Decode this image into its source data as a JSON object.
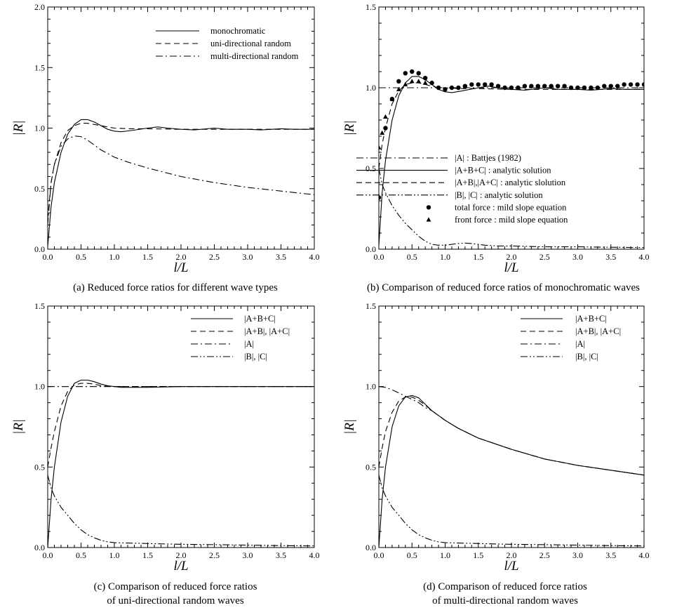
{
  "figure": {
    "captions": {
      "a": [
        "(a) Reduced force ratios for different wave types"
      ],
      "b": [
        "(b) Comparison of reduced force ratios of monochromatic waves"
      ],
      "c": [
        "(c) Comparison of reduced force ratios",
        "of uni-directional random waves"
      ],
      "d": [
        "(d) Comparison of reduced force ratios",
        "of multi-directional random waves"
      ]
    }
  },
  "chart_data": [
    {
      "id": "a",
      "type": "line",
      "xlabel": "l/L",
      "ylabel": "|R|",
      "xlim": [
        0,
        4
      ],
      "ylim": [
        0,
        2
      ],
      "xticks": [
        "0.0",
        "0.5",
        "1.0",
        "1.5",
        "2.0",
        "2.5",
        "3.0",
        "3.5",
        "4.0"
      ],
      "yticks": [
        "0.0",
        "0.5",
        "1.0",
        "1.5",
        "2.0"
      ],
      "legend_position": "top-right",
      "series": [
        {
          "name": "monochromatic",
          "style": "solid",
          "x": [
            0,
            0.05,
            0.1,
            0.2,
            0.3,
            0.4,
            0.5,
            0.6,
            0.7,
            0.8,
            0.9,
            1.0,
            1.1,
            1.25,
            1.5,
            1.65,
            1.8,
            2.0,
            2.2,
            2.5,
            2.7,
            3.0,
            3.2,
            3.5,
            3.7,
            4.0
          ],
          "y": [
            0.02,
            0.35,
            0.55,
            0.8,
            0.95,
            1.03,
            1.07,
            1.07,
            1.05,
            1.02,
            0.99,
            0.975,
            0.97,
            0.98,
            1.0,
            1.01,
            1.0,
            0.99,
            0.985,
            1.0,
            0.99,
            0.99,
            0.985,
            0.995,
            0.99,
            0.99
          ]
        },
        {
          "name": "uni-directional random",
          "style": "dashed",
          "x": [
            0,
            0.05,
            0.1,
            0.2,
            0.3,
            0.4,
            0.5,
            0.6,
            0.7,
            0.8,
            0.9,
            1.0,
            1.2,
            1.5,
            2.0,
            2.5,
            3.0,
            3.5,
            4.0
          ],
          "y": [
            0.25,
            0.55,
            0.7,
            0.88,
            0.98,
            1.02,
            1.04,
            1.04,
            1.03,
            1.02,
            1.01,
            1.0,
            0.995,
            0.995,
            0.99,
            0.99,
            0.99,
            0.99,
            0.99
          ]
        },
        {
          "name": "multi-directional random",
          "style": "dashdot",
          "x": [
            0,
            0.05,
            0.1,
            0.2,
            0.3,
            0.4,
            0.5,
            0.6,
            0.7,
            0.8,
            0.9,
            1.0,
            1.2,
            1.5,
            2.0,
            2.5,
            3.0,
            3.5,
            4.0
          ],
          "y": [
            0.2,
            0.55,
            0.7,
            0.85,
            0.91,
            0.935,
            0.93,
            0.9,
            0.86,
            0.82,
            0.79,
            0.76,
            0.72,
            0.67,
            0.6,
            0.55,
            0.51,
            0.48,
            0.45
          ]
        }
      ]
    },
    {
      "id": "b",
      "type": "line",
      "xlabel": "l/L",
      "ylabel": "|R|",
      "xlim": [
        0,
        4
      ],
      "ylim": [
        0,
        1.5
      ],
      "xticks": [
        "0.0",
        "0.5",
        "1.0",
        "1.5",
        "2.0",
        "2.5",
        "3.0",
        "3.5",
        "4.0"
      ],
      "yticks": [
        "0.0",
        "0.5",
        "1.0",
        "1.5"
      ],
      "legend_position": "bottom-right",
      "series": [
        {
          "name": "|A| : Battjes (1982)",
          "style": "dashdot",
          "x": [
            0,
            4
          ],
          "y": [
            1.0,
            1.0
          ]
        },
        {
          "name": "|A+B+C| : analytic solution",
          "style": "solid",
          "x": [
            0,
            0.05,
            0.1,
            0.2,
            0.3,
            0.4,
            0.5,
            0.6,
            0.7,
            0.8,
            0.9,
            1.0,
            1.1,
            1.25,
            1.5,
            1.65,
            1.8,
            2.0,
            2.2,
            2.5,
            2.7,
            3.0,
            3.2,
            3.5,
            3.7,
            4.0
          ],
          "y": [
            0.02,
            0.35,
            0.55,
            0.8,
            0.95,
            1.03,
            1.07,
            1.07,
            1.05,
            1.02,
            0.99,
            0.975,
            0.97,
            0.98,
            1.0,
            1.01,
            1.0,
            0.99,
            0.985,
            1.0,
            0.99,
            0.99,
            0.985,
            0.995,
            0.99,
            0.99
          ]
        },
        {
          "name": "|A+B|,|A+C| : analytic slolution",
          "style": "dashed",
          "x": [
            0,
            0.05,
            0.1,
            0.2,
            0.3,
            0.4,
            0.5,
            0.6,
            0.7,
            0.8,
            0.9,
            1.0,
            1.2,
            1.5,
            2.0,
            2.5,
            3.0,
            3.5,
            4.0
          ],
          "y": [
            0.5,
            0.65,
            0.75,
            0.9,
            0.98,
            1.02,
            1.03,
            1.03,
            1.02,
            1.01,
            1.0,
            1.0,
            0.995,
            0.995,
            0.99,
            0.99,
            0.99,
            0.99,
            0.99
          ]
        },
        {
          "name": "|B|, |C| : analytic solution",
          "style": "dashdotdot",
          "x": [
            0,
            0.05,
            0.1,
            0.2,
            0.3,
            0.4,
            0.5,
            0.6,
            0.7,
            0.8,
            0.9,
            1.0,
            1.1,
            1.2,
            1.3,
            1.4,
            1.5,
            1.6,
            1.8,
            2.0,
            2.5,
            3.0,
            3.5,
            4.0
          ],
          "y": [
            0.5,
            0.4,
            0.35,
            0.27,
            0.21,
            0.16,
            0.12,
            0.08,
            0.05,
            0.03,
            0.025,
            0.025,
            0.03,
            0.035,
            0.038,
            0.035,
            0.03,
            0.025,
            0.02,
            0.02,
            0.015,
            0.015,
            0.012,
            0.01
          ]
        },
        {
          "name": "total force : mild slope equation",
          "style": "circle",
          "x": [
            0.0,
            0.1,
            0.2,
            0.3,
            0.4,
            0.5,
            0.6,
            0.7,
            0.8,
            0.9,
            1.0,
            1.1,
            1.2,
            1.3,
            1.4,
            1.5,
            1.6,
            1.7,
            1.8,
            1.9,
            2.0,
            2.1,
            2.2,
            2.3,
            2.4,
            2.5,
            2.6,
            2.7,
            2.8,
            2.9,
            3.0,
            3.1,
            3.2,
            3.3,
            3.4,
            3.5,
            3.6,
            3.7,
            3.8,
            3.9,
            4.0
          ],
          "y": [
            0.32,
            0.75,
            0.93,
            1.04,
            1.09,
            1.1,
            1.09,
            1.06,
            1.03,
            1.0,
            0.99,
            1.0,
            1.0,
            1.01,
            1.02,
            1.02,
            1.02,
            1.02,
            1.01,
            1.0,
            1.0,
            1.0,
            1.01,
            1.01,
            1.01,
            1.01,
            1.01,
            1.01,
            1.01,
            1.0,
            1.0,
            1.0,
            1.0,
            1.0,
            1.01,
            1.01,
            1.01,
            1.02,
            1.02,
            1.02,
            1.02
          ]
        },
        {
          "name": "front force : mild slope equation",
          "style": "triangle",
          "x": [
            0.0,
            0.05,
            0.1,
            0.2,
            0.3,
            0.4,
            0.5,
            0.6,
            0.7
          ],
          "y": [
            0.63,
            0.72,
            0.82,
            0.93,
            0.99,
            1.02,
            1.04,
            1.04,
            1.03
          ]
        }
      ]
    },
    {
      "id": "c",
      "type": "line",
      "xlabel": "l/L",
      "ylabel": "|R|",
      "xlim": [
        0,
        4
      ],
      "ylim": [
        0,
        1.5
      ],
      "xticks": [
        "0.0",
        "0.5",
        "1.0",
        "1.5",
        "2.0",
        "2.5",
        "3.0",
        "3.5",
        "4.0"
      ],
      "yticks": [
        "0.0",
        "0.5",
        "1.0",
        "1.5"
      ],
      "legend_position": "top-right",
      "series": [
        {
          "name": "|A+B+C|",
          "style": "solid",
          "x": [
            0,
            0.05,
            0.1,
            0.2,
            0.3,
            0.4,
            0.5,
            0.6,
            0.7,
            0.8,
            0.9,
            1.0,
            1.1,
            1.2,
            1.5,
            2.0,
            2.5,
            3.0,
            3.5,
            4.0
          ],
          "y": [
            0.0,
            0.3,
            0.5,
            0.78,
            0.94,
            1.02,
            1.04,
            1.04,
            1.03,
            1.015,
            1.005,
            1.0,
            0.995,
            0.995,
            0.995,
            1.0,
            1.0,
            1.0,
            1.0,
            1.0
          ]
        },
        {
          "name": "|A+B|, |A+C|",
          "style": "dashed",
          "x": [
            0,
            0.05,
            0.1,
            0.2,
            0.3,
            0.4,
            0.5,
            0.6,
            0.7,
            0.8,
            1.0,
            1.5,
            2.0,
            2.5,
            3.0,
            3.5,
            4.0
          ],
          "y": [
            0.5,
            0.62,
            0.72,
            0.88,
            0.97,
            1.01,
            1.02,
            1.02,
            1.015,
            1.005,
            1.0,
            1.0,
            1.0,
            1.0,
            1.0,
            1.0,
            1.0
          ]
        },
        {
          "name": "|A|",
          "style": "dashdot",
          "x": [
            0,
            4
          ],
          "y": [
            1.0,
            1.0
          ]
        },
        {
          "name": "|B|, |C|",
          "style": "dashdotdot",
          "x": [
            0,
            0.05,
            0.1,
            0.2,
            0.3,
            0.4,
            0.5,
            0.6,
            0.7,
            0.8,
            0.9,
            1.0,
            1.2,
            1.5,
            2.0,
            2.5,
            3.0,
            3.5,
            4.0
          ],
          "y": [
            0.45,
            0.37,
            0.32,
            0.25,
            0.2,
            0.15,
            0.11,
            0.08,
            0.06,
            0.045,
            0.035,
            0.03,
            0.028,
            0.025,
            0.02,
            0.018,
            0.015,
            0.012,
            0.01
          ]
        }
      ]
    },
    {
      "id": "d",
      "type": "line",
      "xlabel": "l/L",
      "ylabel": "|R|",
      "xlim": [
        0,
        4
      ],
      "ylim": [
        0,
        1.5
      ],
      "xticks": [
        "0.0",
        "0.5",
        "1.0",
        "1.5",
        "2.0",
        "2.5",
        "3.0",
        "3.5",
        "4.0"
      ],
      "yticks": [
        "0.0",
        "0.5",
        "1.0",
        "1.5"
      ],
      "legend_position": "top-right",
      "series": [
        {
          "name": "|A+B+C|",
          "style": "solid",
          "x": [
            0,
            0.05,
            0.1,
            0.2,
            0.3,
            0.4,
            0.5,
            0.6,
            0.7,
            0.8,
            0.9,
            1.0,
            1.2,
            1.5,
            2.0,
            2.5,
            3.0,
            3.5,
            4.0
          ],
          "y": [
            0.0,
            0.3,
            0.5,
            0.75,
            0.88,
            0.935,
            0.945,
            0.93,
            0.89,
            0.85,
            0.82,
            0.79,
            0.74,
            0.68,
            0.61,
            0.55,
            0.51,
            0.48,
            0.45
          ]
        },
        {
          "name": "|A+B|, |A+C|",
          "style": "dashed",
          "x": [
            0,
            0.05,
            0.1,
            0.2,
            0.3,
            0.4,
            0.5,
            0.6,
            0.7,
            0.8,
            0.9,
            1.0,
            1.2,
            1.5,
            2.0,
            2.5,
            3.0,
            3.5,
            4.0
          ],
          "y": [
            0.5,
            0.62,
            0.72,
            0.84,
            0.91,
            0.935,
            0.935,
            0.915,
            0.885,
            0.85,
            0.82,
            0.79,
            0.74,
            0.68,
            0.61,
            0.55,
            0.51,
            0.48,
            0.45
          ]
        },
        {
          "name": "|A|",
          "style": "dashdot",
          "x": [
            0,
            0.1,
            0.2,
            0.3,
            0.4,
            0.5,
            0.6,
            0.7,
            0.8,
            0.9,
            1.0,
            1.2,
            1.5,
            2.0,
            2.5,
            3.0,
            3.5,
            4.0
          ],
          "y": [
            1.0,
            0.995,
            0.98,
            0.96,
            0.94,
            0.92,
            0.9,
            0.87,
            0.85,
            0.82,
            0.79,
            0.74,
            0.68,
            0.61,
            0.55,
            0.51,
            0.48,
            0.45
          ]
        },
        {
          "name": "|B|, |C|",
          "style": "dashdotdot",
          "x": [
            0,
            0.05,
            0.1,
            0.2,
            0.3,
            0.4,
            0.5,
            0.6,
            0.7,
            0.8,
            0.9,
            1.0,
            1.2,
            1.5,
            2.0,
            2.5,
            3.0,
            3.5,
            4.0
          ],
          "y": [
            0.45,
            0.37,
            0.32,
            0.25,
            0.2,
            0.15,
            0.11,
            0.08,
            0.06,
            0.045,
            0.035,
            0.03,
            0.028,
            0.025,
            0.02,
            0.018,
            0.015,
            0.012,
            0.01
          ]
        }
      ]
    }
  ]
}
